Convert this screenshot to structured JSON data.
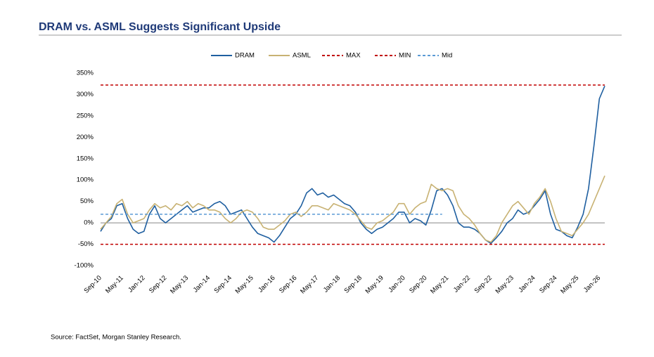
{
  "chart_data": {
    "type": "line",
    "title": "DRAM vs. ASML Suggests Significant Upside",
    "source": "Source: FactSet, Morgan Stanley Research.",
    "categories": [
      "Sep-10",
      null,
      null,
      null,
      "May-11",
      null,
      null,
      null,
      "Jan-12",
      null,
      null,
      null,
      "Sep-12",
      null,
      null,
      null,
      "May-13",
      null,
      null,
      null,
      "Jan-14",
      null,
      null,
      null,
      "Sep-14",
      null,
      null,
      null,
      "May-15",
      null,
      null,
      null,
      "Jan-16",
      null,
      null,
      null,
      "Sep-16",
      null,
      null,
      null,
      "May-17",
      null,
      null,
      null,
      "Jan-18",
      null,
      null,
      null,
      "Sep-18",
      null,
      null,
      null,
      "May-19",
      null,
      null,
      null,
      "Jan-20",
      null,
      null,
      null,
      "Sep-20",
      null,
      null,
      null,
      "May-21",
      null,
      null,
      null,
      "Jan-22",
      null,
      null,
      null,
      "Sep-22",
      null,
      null,
      null,
      "May-23",
      null,
      null,
      null,
      "Jan-24",
      null,
      null,
      null,
      "Sep-24",
      null,
      null,
      null,
      "May-25",
      null,
      null,
      null,
      "Jan-26",
      null
    ],
    "series": [
      {
        "name": "DRAM",
        "color": "#1f5fa0",
        "style": "solid",
        "values": [
          -20,
          0,
          10,
          40,
          45,
          10,
          -15,
          -25,
          -20,
          20,
          40,
          10,
          0,
          10,
          20,
          30,
          40,
          25,
          30,
          35,
          35,
          45,
          50,
          40,
          20,
          25,
          30,
          10,
          -10,
          -25,
          -30,
          -35,
          -45,
          -30,
          -10,
          10,
          20,
          40,
          70,
          80,
          65,
          70,
          60,
          65,
          55,
          45,
          40,
          25,
          0,
          -15,
          -25,
          -15,
          -10,
          0,
          10,
          25,
          25,
          0,
          10,
          5,
          -5,
          30,
          75,
          80,
          65,
          40,
          0,
          -10,
          -10,
          -15,
          -25,
          -40,
          -48,
          -35,
          -20,
          0,
          10,
          30,
          20,
          25,
          40,
          55,
          75,
          20,
          -15,
          -20,
          -30,
          -35,
          -10,
          20,
          80,
          180,
          290,
          320
        ]
      },
      {
        "name": "ASML",
        "color": "#c8b273",
        "style": "solid",
        "values": [
          -15,
          0,
          15,
          45,
          55,
          20,
          0,
          5,
          10,
          30,
          45,
          35,
          40,
          30,
          45,
          40,
          50,
          35,
          45,
          40,
          30,
          30,
          25,
          10,
          0,
          10,
          25,
          30,
          25,
          10,
          -10,
          -15,
          -15,
          -5,
          5,
          20,
          25,
          15,
          25,
          40,
          40,
          35,
          30,
          45,
          40,
          35,
          30,
          20,
          5,
          -10,
          -15,
          0,
          5,
          15,
          25,
          45,
          45,
          20,
          35,
          45,
          50,
          90,
          80,
          75,
          80,
          75,
          40,
          20,
          10,
          -5,
          -25,
          -40,
          -45,
          -30,
          0,
          20,
          40,
          50,
          35,
          20,
          45,
          60,
          80,
          50,
          10,
          -20,
          -25,
          -30,
          -15,
          0,
          20,
          50,
          80,
          110
        ]
      },
      {
        "name": "MAX",
        "color": "#c00000",
        "style": "dashed",
        "values": [
          322,
          322,
          322,
          322,
          322,
          322,
          322,
          322,
          322,
          322,
          322,
          322,
          322,
          322,
          322,
          322,
          322,
          322,
          322,
          322,
          322,
          322,
          322,
          322,
          322,
          322,
          322,
          322,
          322,
          322,
          322,
          322,
          322,
          322,
          322,
          322,
          322,
          322,
          322,
          322,
          322,
          322,
          322,
          322,
          322,
          322,
          322,
          322,
          322,
          322,
          322,
          322,
          322,
          322,
          322,
          322,
          322,
          322,
          322,
          322,
          322,
          322,
          322,
          322,
          322,
          322,
          322,
          322,
          322,
          322,
          322,
          322,
          322,
          322,
          322,
          322,
          322,
          322,
          322,
          322,
          322,
          322,
          322,
          322,
          322,
          322,
          322,
          322,
          322,
          322,
          322,
          322,
          322,
          322
        ]
      },
      {
        "name": "MIN",
        "color": "#c00000",
        "style": "dashed",
        "values": [
          -50,
          -50,
          -50,
          -50,
          -50,
          -50,
          -50,
          -50,
          -50,
          -50,
          -50,
          -50,
          -50,
          -50,
          -50,
          -50,
          -50,
          -50,
          -50,
          -50,
          -50,
          -50,
          -50,
          -50,
          -50,
          -50,
          -50,
          -50,
          -50,
          -50,
          -50,
          -50,
          -50,
          -50,
          -50,
          -50,
          -50,
          -50,
          -50,
          -50,
          -50,
          -50,
          -50,
          -50,
          -50,
          -50,
          -50,
          -50,
          -50,
          -50,
          -50,
          -50,
          -50,
          -50,
          -50,
          -50,
          -50,
          -50,
          -50,
          -50,
          -50,
          -50,
          -50,
          -50,
          -50,
          -50,
          -50,
          -50,
          -50,
          -50,
          -50,
          -50,
          -50,
          -50,
          -50,
          -50,
          -50,
          -50,
          -50,
          -50,
          -50,
          -50,
          -50,
          -50,
          -50,
          -50,
          -50,
          -50,
          -50,
          -50,
          -50,
          -50,
          -50,
          -50
        ]
      },
      {
        "name": "Mid",
        "color": "#5b9bd5",
        "style": "dashed",
        "values": [
          20,
          20,
          20,
          20,
          20,
          20,
          20,
          20,
          20,
          20,
          20,
          20,
          20,
          20,
          20,
          20,
          20,
          20,
          20,
          20,
          20,
          20,
          20,
          20,
          20,
          20,
          20,
          20,
          20,
          20,
          20,
          20,
          20,
          20,
          20,
          20,
          20,
          20,
          20,
          20,
          20,
          20,
          20,
          20,
          20,
          20,
          20,
          20,
          20,
          20,
          20,
          20,
          20,
          20,
          20,
          20,
          20,
          20,
          20,
          20,
          20,
          20,
          20,
          20,
          null,
          null,
          null,
          null,
          null,
          null,
          null,
          null,
          null,
          null,
          null,
          null,
          null,
          null,
          null,
          null,
          null,
          null,
          null,
          null,
          null,
          null,
          null,
          null,
          null,
          null,
          null,
          null,
          null,
          null
        ]
      }
    ],
    "ylim": [
      -100,
      350
    ],
    "yticks": [
      {
        "value": -100,
        "label": "-100%"
      },
      {
        "value": -50,
        "label": "-50%"
      },
      {
        "value": 0,
        "label": "0%"
      },
      {
        "value": 50,
        "label": "50%"
      },
      {
        "value": 100,
        "label": "100%"
      },
      {
        "value": 150,
        "label": "150%"
      },
      {
        "value": 200,
        "label": "200%"
      },
      {
        "value": 250,
        "label": "250%"
      },
      {
        "value": 300,
        "label": "300%"
      },
      {
        "value": 350,
        "label": "350%"
      }
    ],
    "grid": false,
    "legend": "top"
  }
}
